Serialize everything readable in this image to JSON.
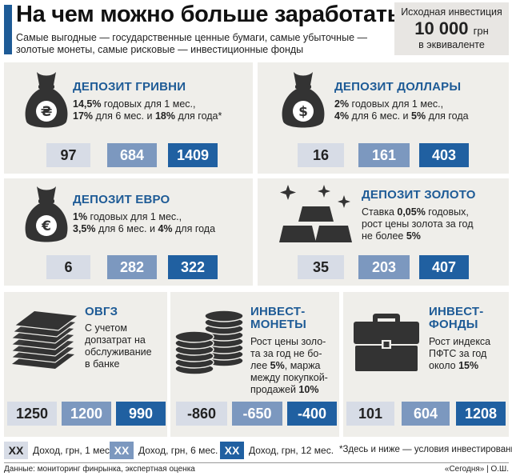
{
  "header": {
    "title": "На чем можно больше заработать",
    "subtitle": "Самые выгодные — государственные ценные бумаги, самые убыточные — золотые монеты, самые рисковые — инвестиционные фонды",
    "investment_label": "Исходная инвестиция",
    "investment_amount": "10 000",
    "investment_currency": "грн",
    "investment_note": "в эквиваленте"
  },
  "panels": {
    "hryvnia": {
      "title": "ДЕПОЗИТ ГРИВНИ",
      "line1_bold": "14,5%",
      "line1_rest": " годовых для 1 мес.,",
      "line2_b1": "17%",
      "line2_m": " для 6 мес. и ",
      "line2_b2": "18%",
      "line2_rest": " для года*",
      "values": [
        "97",
        "684",
        "1409"
      ]
    },
    "dollar": {
      "title": "ДЕПОЗИТ ДОЛЛАРЫ",
      "line1_bold": "2%",
      "line1_rest": " годовых для 1 мес.,",
      "line2_b1": "4%",
      "line2_m": " для 6 мес. и ",
      "line2_b2": "5%",
      "line2_rest": " для года",
      "values": [
        "16",
        "161",
        "403"
      ]
    },
    "euro": {
      "title": "ДЕПОЗИТ ЕВРО",
      "line1_bold": "1%",
      "line1_rest": " годовых для 1 мес.,",
      "line2_b1": "3,5%",
      "line2_m": " для 6 мес. и ",
      "line2_b2": "4%",
      "line2_rest": " для года",
      "values": [
        "6",
        "282",
        "322"
      ]
    },
    "gold": {
      "title": "ДЕПОЗИТ ЗОЛОТО",
      "line1_pre": "Ставка ",
      "line1_bold": "0,05%",
      "line1_rest": " годовых,",
      "line2": "рост цены золота за год",
      "line3_pre": "не более ",
      "line3_bold": "5%",
      "values": [
        "35",
        "203",
        "407"
      ]
    },
    "ovgz": {
      "title": "ОВГЗ",
      "line1": "С учетом",
      "line2": "допзатрат на",
      "line3": "обслуживание",
      "line4": "в банке",
      "values": [
        "1250",
        "1200",
        "990"
      ]
    },
    "coins": {
      "title1": "ИНВЕСТ-",
      "title2": "МОНЕТЫ",
      "line1": "Рост цены золо-",
      "line2": "та за год не бо-",
      "line3_pre": "лее ",
      "line3_bold": "5%",
      "line3_rest": ", маржа",
      "line4": "между покупкой-",
      "line5_pre": "продажей ",
      "line5_bold": "10%",
      "values": [
        "-860",
        "-650",
        "-400"
      ]
    },
    "funds": {
      "title1": "ИНВЕСТ-",
      "title2": "ФОНДЫ",
      "line1": "Рост индекса",
      "line2": "ПФТС за год",
      "line3_pre": "около ",
      "line3_bold": "15%",
      "values": [
        "101",
        "604",
        "1208"
      ]
    }
  },
  "legend": {
    "marker": "ХХ",
    "label1": "Доход, грн, 1 мес.",
    "label2": "Доход, грн, 6 мес.",
    "label3": "Доход, грн, 12 мес.",
    "note": "*Здесь и ниже — условия инвестирования"
  },
  "footer": {
    "source": "Данные: мониторинг финрынка, экспертная оценка",
    "credit": "«Сегодня» | О.Ш."
  },
  "colors": {
    "accent": "#1e5b96",
    "panel_bg": "#efeeea",
    "box_1m": "#d7dce6",
    "box_6m": "#7c98bf",
    "box_12m": "#2060a1",
    "icon": "#333333"
  }
}
